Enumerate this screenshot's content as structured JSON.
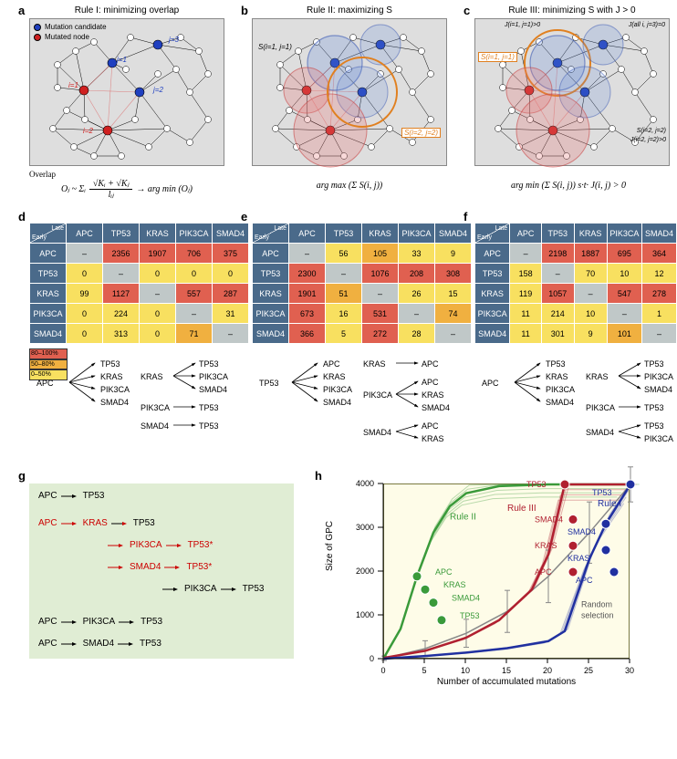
{
  "panels": {
    "a": {
      "label": "a",
      "title": "Rule I: minimizing overlap",
      "legend1": "Mutation candidate",
      "legend2": "Mutated node",
      "j1": "j=1",
      "j2": "j=2",
      "j3": "j=3",
      "i1": "i=1",
      "i2": "i=2",
      "o_lhs": "Overlap",
      "o_main": "Oⱼ ~ Σᵢ",
      "o_num": "√Kᵢ + √Kⱼ",
      "o_den": "lᵢⱼ",
      "o_rhs": "→ arg min (Oⱼ)",
      "o_sub": "j"
    },
    "b": {
      "label": "b",
      "title": "Rule II: maximizing S",
      "s11": "S(i=1, j=1)",
      "s22": "S(i=2, j=2)",
      "formula_pre": "arg max (Σ S(i, j))",
      "formula_subj": "j",
      "formula_subi": "i"
    },
    "c": {
      "label": "c",
      "title": "Rule III: minimizing S with J > 0",
      "j11": "J(i=1, j=1)>0",
      "s11": "S(i=1, j=1)",
      "j3": "J(all i, j=3)=0",
      "s22": "S(i=2, j=2)",
      "j22": "J(i=2, j=2)>0",
      "formula": "arg min (Σ S(i, j)) s·t· J(i, j) > 0",
      "formula_subj": "j",
      "formula_subi": "i"
    },
    "g": {
      "label": "g",
      "lines": [
        {
          "parts": [
            {
              "t": "APC",
              "c": "#000"
            },
            {
              "t": "→",
              "c": "#000"
            },
            {
              "t": "TP53",
              "c": "#000"
            }
          ]
        },
        {
          "parts": [
            {
              "t": "APC",
              "c": "#c00"
            },
            {
              "t": "→",
              "c": "#c00"
            },
            {
              "t": "KRAS",
              "c": "#c00"
            },
            {
              "t": "→",
              "c": "#000"
            },
            {
              "t": "TP53",
              "c": "#000"
            }
          ]
        },
        {
          "parts": [
            {
              "t": "",
              "c": "#000",
              "pad": 72
            },
            {
              "t": "→",
              "c": "#c00"
            },
            {
              "t": "PIK3CA",
              "c": "#c00"
            },
            {
              "t": "→",
              "c": "#c00"
            },
            {
              "t": "TP53*",
              "c": "#c00"
            }
          ]
        },
        {
          "parts": [
            {
              "t": "",
              "c": "#000",
              "pad": 72
            },
            {
              "t": "→",
              "c": "#c00"
            },
            {
              "t": "SMAD4",
              "c": "#c00"
            },
            {
              "t": "→",
              "c": "#c00"
            },
            {
              "t": "TP53*",
              "c": "#c00"
            }
          ]
        },
        {
          "parts": [
            {
              "t": "",
              "c": "#000",
              "pad": 132
            },
            {
              "t": "→",
              "c": "#000"
            },
            {
              "t": "PIK3CA",
              "c": "#000"
            },
            {
              "t": "→",
              "c": "#000"
            },
            {
              "t": "TP53",
              "c": "#000"
            }
          ]
        },
        {
          "parts": [
            {
              "t": "APC",
              "c": "#000"
            },
            {
              "t": "→",
              "c": "#000"
            },
            {
              "t": "PIK3CA",
              "c": "#000"
            },
            {
              "t": "→",
              "c": "#000"
            },
            {
              "t": "TP53",
              "c": "#000"
            }
          ]
        },
        {
          "parts": [
            {
              "t": "APC",
              "c": "#000"
            },
            {
              "t": "→",
              "c": "#000"
            },
            {
              "t": "SMAD4",
              "c": "#000"
            },
            {
              "t": "→",
              "c": "#000"
            },
            {
              "t": "TP53",
              "c": "#000"
            }
          ]
        }
      ]
    },
    "h": {
      "label": "h",
      "xlabel": "Number of accumulated mutations",
      "ylabel": "Size of GPC",
      "xlim": [
        0,
        30
      ],
      "xticks": [
        0,
        5,
        10,
        15,
        20,
        25,
        30
      ],
      "ylim": [
        0,
        4000
      ],
      "yticks": [
        0,
        1000,
        2000,
        3000,
        4000
      ],
      "rule2_label": "Rule II",
      "rule2_color": "#3a9a3a",
      "rule3_label": "Rule III",
      "rule3_color": "#b02030",
      "rule1_label": "Rule I",
      "rule1_color": "#2030a0",
      "random_label": "Random\nselection",
      "random_color": "#888",
      "gene_markers": {
        "rule2": [
          {
            "g": "APC",
            "x": 4,
            "y": 1900
          },
          {
            "g": "KRAS",
            "x": 5,
            "y": 1600
          },
          {
            "g": "SMAD4",
            "x": 6,
            "y": 1300
          },
          {
            "g": "TP53",
            "x": 7,
            "y": 900
          }
        ],
        "rule3": [
          {
            "g": "TP53",
            "x": 22,
            "y": 4000
          },
          {
            "g": "SMAD4",
            "x": 23,
            "y": 3200
          },
          {
            "g": "KRAS",
            "x": 23,
            "y": 2600
          },
          {
            "g": "APC",
            "x": 23,
            "y": 2000
          }
        ],
        "rule1": [
          {
            "g": "TP53",
            "x": 30,
            "y": 4000
          },
          {
            "g": "SMAD4",
            "x": 27,
            "y": 3100
          },
          {
            "g": "KRAS",
            "x": 27,
            "y": 2500
          },
          {
            "g": "APC",
            "x": 28,
            "y": 2000
          }
        ]
      },
      "curves": {
        "rule1_main": [
          [
            0,
            20
          ],
          [
            5,
            80
          ],
          [
            10,
            160
          ],
          [
            15,
            260
          ],
          [
            20,
            420
          ],
          [
            22,
            650
          ],
          [
            25,
            2300
          ],
          [
            27,
            3100
          ],
          [
            30,
            4000
          ]
        ],
        "rule2_main": [
          [
            0,
            50
          ],
          [
            2,
            700
          ],
          [
            4,
            1900
          ],
          [
            6,
            2900
          ],
          [
            8,
            3500
          ],
          [
            10,
            3800
          ],
          [
            14,
            3960
          ],
          [
            20,
            4000
          ],
          [
            30,
            4000
          ]
        ],
        "rule3_main": [
          [
            0,
            40
          ],
          [
            5,
            200
          ],
          [
            10,
            500
          ],
          [
            14,
            900
          ],
          [
            18,
            1600
          ],
          [
            20,
            2400
          ],
          [
            22,
            4000
          ],
          [
            25,
            4000
          ],
          [
            30,
            4000
          ]
        ],
        "random": [
          [
            0,
            30
          ],
          [
            5,
            250
          ],
          [
            10,
            600
          ],
          [
            15,
            1100
          ],
          [
            20,
            1900
          ],
          [
            25,
            2900
          ],
          [
            30,
            4000
          ]
        ],
        "err": [
          50,
          180,
          320,
          480,
          600,
          700,
          400
        ]
      }
    }
  },
  "genes": [
    "APC",
    "TP53",
    "KRAS",
    "PIK3CA",
    "SMAD4"
  ],
  "tables": {
    "d": [
      [
        "–",
        "2356",
        "1907",
        "706",
        "375"
      ],
      [
        "0",
        "–",
        "0",
        "0",
        "0"
      ],
      [
        "99",
        "1127",
        "–",
        "557",
        "287"
      ],
      [
        "0",
        "224",
        "0",
        "–",
        "31"
      ],
      [
        "0",
        "313",
        "0",
        "71",
        "–"
      ]
    ],
    "e": [
      [
        "–",
        "56",
        "105",
        "33",
        "9"
      ],
      [
        "2300",
        "–",
        "1076",
        "208",
        "308"
      ],
      [
        "1901",
        "51",
        "–",
        "26",
        "15"
      ],
      [
        "673",
        "16",
        "531",
        "–",
        "74"
      ],
      [
        "366",
        "5",
        "272",
        "28",
        "–"
      ]
    ],
    "f": [
      [
        "–",
        "2198",
        "1887",
        "695",
        "364"
      ],
      [
        "158",
        "–",
        "70",
        "10",
        "12"
      ],
      [
        "119",
        "1057",
        "–",
        "547",
        "278"
      ],
      [
        "11",
        "214",
        "10",
        "–",
        "1"
      ],
      [
        "11",
        "301",
        "9",
        "101",
        "–"
      ]
    ]
  },
  "colors": {
    "d": [
      [
        "gy",
        "r",
        "r",
        "r",
        "r"
      ],
      [
        "y",
        "gy",
        "y",
        "y",
        "y"
      ],
      [
        "y",
        "r",
        "gy",
        "r",
        "r"
      ],
      [
        "y",
        "y",
        "y",
        "gy",
        "y"
      ],
      [
        "y",
        "y",
        "y",
        "o",
        "gy"
      ]
    ],
    "e": [
      [
        "gy",
        "y",
        "o",
        "y",
        "y"
      ],
      [
        "r",
        "gy",
        "r",
        "r",
        "r"
      ],
      [
        "r",
        "o",
        "gy",
        "y",
        "y"
      ],
      [
        "r",
        "y",
        "r",
        "gy",
        "o"
      ],
      [
        "r",
        "y",
        "r",
        "y",
        "gy"
      ]
    ],
    "f": [
      [
        "gy",
        "r",
        "r",
        "r",
        "r"
      ],
      [
        "y",
        "gy",
        "y",
        "y",
        "y"
      ],
      [
        "y",
        "r",
        "gy",
        "r",
        "r"
      ],
      [
        "y",
        "y",
        "y",
        "gy",
        "y"
      ],
      [
        "y",
        "y",
        "y",
        "o",
        "gy"
      ]
    ]
  },
  "color_map": {
    "r": "#e06050",
    "o": "#f0b040",
    "y": "#f8e060",
    "gy": "#c0c8c8"
  },
  "scheme": [
    {
      "c": "#e06050",
      "t": "80–100%"
    },
    {
      "c": "#f0b040",
      "t": "50–80%"
    },
    {
      "c": "#f8e060",
      "t": "0–50%"
    }
  ],
  "diagrams": {
    "d": [
      {
        "from": "APC",
        "to": [
          "TP53",
          "KRAS",
          "PIK3CA",
          "SMAD4"
        ]
      },
      {
        "from": "KRAS",
        "to": [
          "TP53",
          "PIK3CA",
          "SMAD4"
        ]
      },
      {
        "from": "PIK3CA",
        "to": [
          "TP53"
        ]
      },
      {
        "from": "SMAD4",
        "to": [
          "TP53"
        ]
      }
    ],
    "e": [
      {
        "from": "TP53",
        "to": [
          "APC",
          "KRAS",
          "PIK3CA",
          "SMAD4"
        ]
      },
      {
        "from": "KRAS",
        "to": [
          "APC"
        ]
      },
      {
        "from": "PIK3CA",
        "to": [
          "APC",
          "KRAS",
          "SMAD4"
        ]
      },
      {
        "from": "SMAD4",
        "to": [
          "APC",
          "KRAS"
        ]
      }
    ],
    "f": [
      {
        "from": "APC",
        "to": [
          "TP53",
          "KRAS",
          "PIK3CA",
          "SMAD4"
        ]
      },
      {
        "from": "KRAS",
        "to": [
          "TP53",
          "PIK3CA",
          "SMAD4"
        ]
      },
      {
        "from": "PIK3CA",
        "to": [
          "TP53"
        ]
      },
      {
        "from": "SMAD4",
        "to": [
          "TP53",
          "PIK3CA"
        ]
      }
    ]
  },
  "diagram_labels": {
    "d": "d",
    "e": "e",
    "f": "f"
  }
}
